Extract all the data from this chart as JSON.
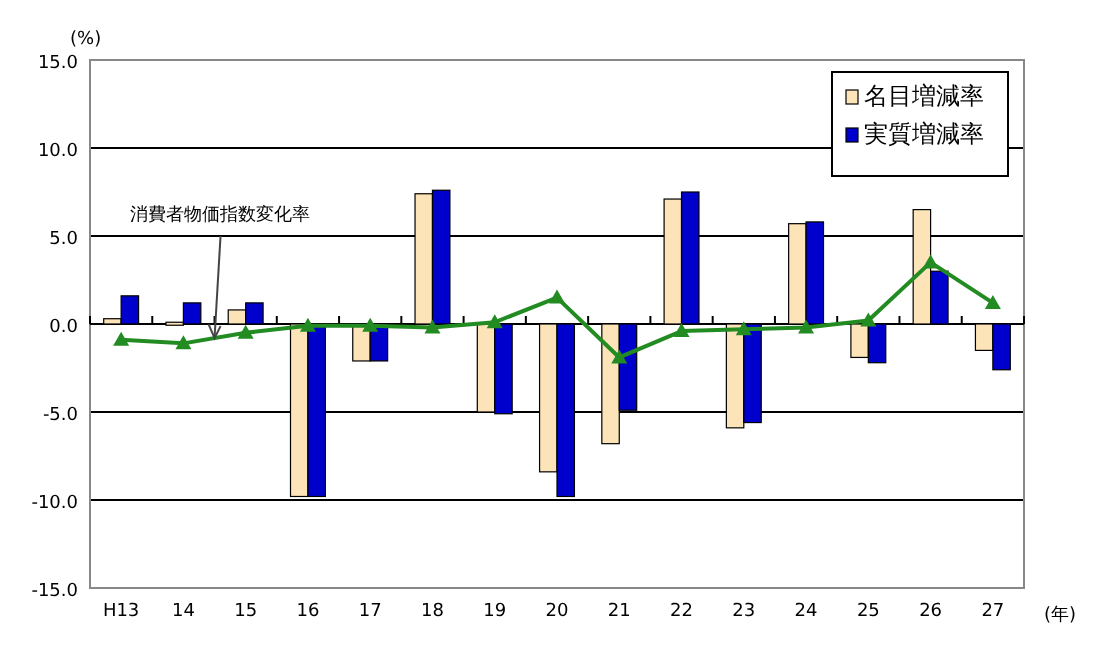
{
  "chart_data": {
    "type": "bar",
    "ylabel": "(%)",
    "xlabel": "(年)",
    "categories": [
      "H13",
      "14",
      "15",
      "16",
      "17",
      "18",
      "19",
      "20",
      "21",
      "22",
      "23",
      "24",
      "25",
      "26",
      "27"
    ],
    "series": [
      {
        "name": "名目増減率",
        "color": "#fde3b8",
        "values": [
          0.3,
          0.1,
          0.8,
          -9.8,
          -2.1,
          7.4,
          -5.0,
          -8.4,
          -6.8,
          7.1,
          -5.9,
          5.7,
          -1.9,
          6.5,
          -1.5
        ]
      },
      {
        "name": "実質増減率",
        "color": "#0000cc",
        "values": [
          1.6,
          1.2,
          1.2,
          -9.8,
          -2.1,
          7.6,
          -5.1,
          -9.8,
          -4.9,
          7.5,
          -5.6,
          5.8,
          -2.2,
          3.0,
          -2.6
        ]
      },
      {
        "type": "line",
        "color": "#228b22",
        "marker": "triangle",
        "values": [
          -0.9,
          -1.1,
          -0.5,
          -0.1,
          -0.1,
          -0.2,
          0.1,
          1.5,
          -1.9,
          -0.4,
          -0.3,
          -0.2,
          0.2,
          3.5,
          1.2
        ]
      }
    ],
    "ylim": [
      -15,
      15
    ],
    "yticks": [
      {
        "value": -15,
        "label": "-15.0"
      },
      {
        "value": -10,
        "label": "-10.0"
      },
      {
        "value": -5,
        "label": "-5.0"
      },
      {
        "value": 0,
        "label": "0.0"
      },
      {
        "value": 5,
        "label": "5.0"
      },
      {
        "value": 10,
        "label": "10.0"
      },
      {
        "value": 15,
        "label": "15.0"
      }
    ],
    "grid": "y",
    "legend": "top right",
    "annotations": [
      {
        "text": "消費者物価指数変化率",
        "y": -0.8
      }
    ]
  }
}
